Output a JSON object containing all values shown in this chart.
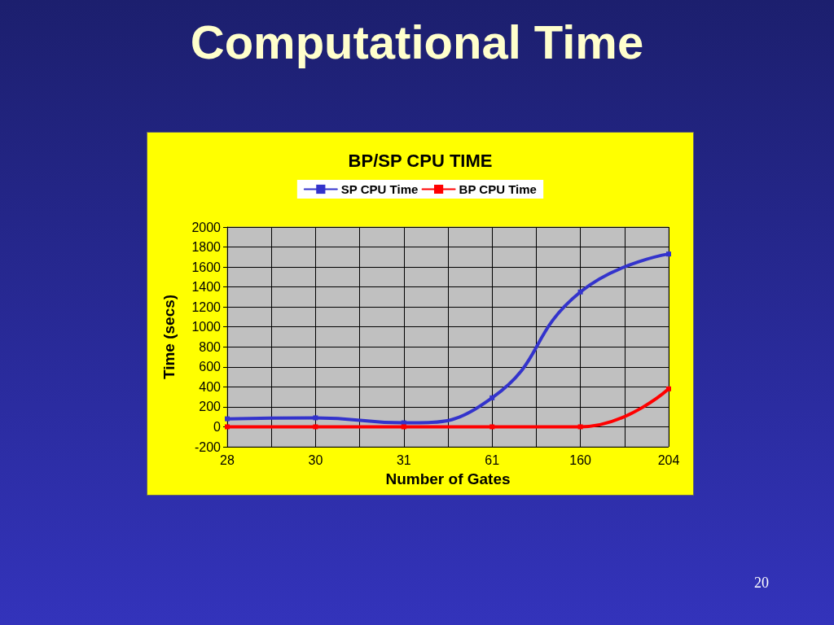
{
  "chart_data": {
    "type": "line",
    "title": "Computational Time",
    "subtitle": "BP/SP CPU TIME",
    "xlabel": "Number of Gates",
    "ylabel": "Time (secs)",
    "categories": [
      "28",
      "30",
      "31",
      "61",
      "160",
      "204"
    ],
    "series": [
      {
        "name": "SP CPU Time",
        "color": "#3333cc",
        "values": [
          80,
          90,
          40,
          290,
          1350,
          1730
        ]
      },
      {
        "name": "BP CPU Time",
        "color": "#ff0000",
        "values": [
          0,
          0,
          0,
          0,
          0,
          380
        ]
      }
    ],
    "ylim": [
      -200,
      2000
    ],
    "yticks": [
      -200,
      0,
      200,
      400,
      600,
      800,
      1000,
      1200,
      1400,
      1600,
      1800,
      2000
    ],
    "grid": true,
    "legend": "top",
    "marker": "square",
    "line_style": "solid",
    "annotations": [
      "20"
    ]
  }
}
